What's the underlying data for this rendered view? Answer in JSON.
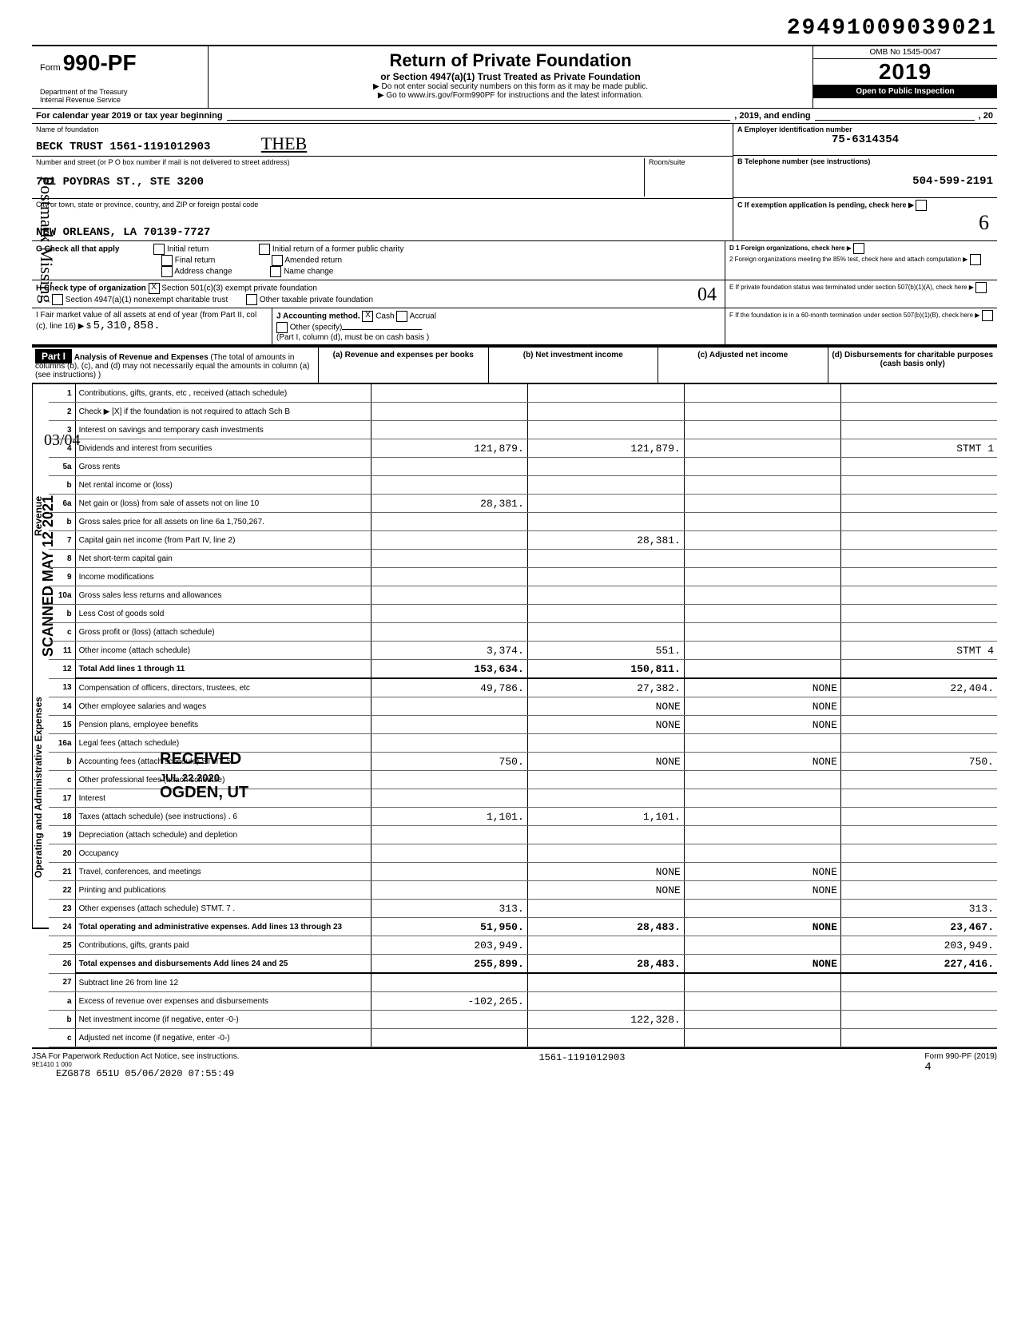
{
  "tracking_number": "29491009039021",
  "form": {
    "number": "990-PF",
    "title": "Return of Private Foundation",
    "subtitle": "or Section 4947(a)(1) Trust Treated as Private Foundation",
    "note1": "▶ Do not enter social security numbers on this form as it may be made public.",
    "note2": "▶ Go to www.irs.gov/Form990PF for instructions and the latest information.",
    "dept": "Department of the Treasury",
    "irs": "Internal Revenue Service",
    "omb": "OMB No 1545-0047",
    "year": "2019",
    "inspection": "Open to Public Inspection"
  },
  "cal_year": "For calendar year 2019 or tax year beginning",
  "cal_mid": ", 2019, and ending",
  "cal_end": ", 20",
  "foundation": {
    "name_label": "Name of foundation",
    "name": "BECK TRUST 1561-1191012903",
    "hand_note": "THEB",
    "street_label": "Number and street (or P O box number if mail is not delivered to street address)",
    "street": "701 POYDRAS ST., STE 3200",
    "room_label": "Room/suite",
    "city_label": "City or town, state or province, country, and ZIP or foreign postal code",
    "city": "NEW ORLEANS, LA 70139-7727"
  },
  "sideA": {
    "label": "A  Employer identification number",
    "value": "75-6314354"
  },
  "sideB": {
    "label": "B  Telephone number (see instructions)",
    "value": "504-599-2191"
  },
  "sideC": {
    "label": "C  If exemption application is pending, check here"
  },
  "sideD": {
    "d1": "D 1 Foreign organizations, check here",
    "d2": "2 Foreign organizations meeting the 85% test, check here and attach computation"
  },
  "sideE": {
    "label": "E  If private foundation status was terminated under section 507(b)(1)(A), check here"
  },
  "sideF": {
    "label": "F  If the foundation is in a 60-month termination under section 507(b)(1)(B), check here"
  },
  "sectionG": {
    "label": "G Check all that apply",
    "opts": [
      "Initial return",
      "Final return",
      "Address change",
      "Initial return of a former public charity",
      "Amended return",
      "Name change"
    ]
  },
  "sectionH": {
    "label": "H Check type of organization",
    "opt1": "Section 501(c)(3) exempt private foundation",
    "opt2": "Section 4947(a)(1) nonexempt charitable trust",
    "opt3": "Other taxable private foundation",
    "hand": "04"
  },
  "sectionI": {
    "label": "I  Fair market value of all assets at end of year (from Part II, col (c), line 16) ▶ $",
    "value": "5,310,858."
  },
  "sectionJ": {
    "label": "J Accounting method.",
    "cash": "Cash",
    "accrual": "Accrual",
    "other": "Other (specify)",
    "note": "(Part I, column (d), must be on cash basis )"
  },
  "part1": {
    "label": "Part I",
    "title": "Analysis of Revenue and Expenses",
    "note": "(The total of amounts in columns (b), (c), and (d) may not necessarily equal the amounts in column (a) (see instructions) )",
    "col_a": "(a) Revenue and expenses per books",
    "col_b": "(b) Net investment income",
    "col_c": "(c) Adjusted net income",
    "col_d": "(d) Disbursements for charitable purposes (cash basis only)"
  },
  "rows": [
    {
      "n": "1",
      "d": "Contributions, gifts, grants, etc , received (attach schedule)"
    },
    {
      "n": "2",
      "d": "Check ▶ [X] if the foundation is not required to attach Sch B"
    },
    {
      "n": "3",
      "d": "Interest on savings and temporary cash investments"
    },
    {
      "n": "4",
      "d": "Dividends and interest from securities",
      "a": "121,879.",
      "b": "121,879.",
      "e": "STMT 1"
    },
    {
      "n": "5a",
      "d": "Gross rents"
    },
    {
      "n": "b",
      "d": "Net rental income or (loss)"
    },
    {
      "n": "6a",
      "d": "Net gain or (loss) from sale of assets not on line 10",
      "a": "28,381."
    },
    {
      "n": "b",
      "d": "Gross sales price for all assets on line 6a    1,750,267."
    },
    {
      "n": "7",
      "d": "Capital gain net income (from Part IV, line 2)",
      "b": "28,381."
    },
    {
      "n": "8",
      "d": "Net short-term capital gain"
    },
    {
      "n": "9",
      "d": "Income modifications"
    },
    {
      "n": "10a",
      "d": "Gross sales less returns and allowances"
    },
    {
      "n": "b",
      "d": "Less Cost of goods sold"
    },
    {
      "n": "c",
      "d": "Gross profit or (loss) (attach schedule)"
    },
    {
      "n": "11",
      "d": "Other income (attach schedule)",
      "a": "3,374.",
      "b": "551.",
      "e": "STMT 4"
    },
    {
      "n": "12",
      "d": "Total Add lines 1 through 11",
      "a": "153,634.",
      "b": "150,811."
    },
    {
      "n": "13",
      "d": "Compensation of officers, directors, trustees, etc",
      "a": "49,786.",
      "b": "27,382.",
      "c": "NONE",
      "e": "22,404."
    },
    {
      "n": "14",
      "d": "Other employee salaries and wages",
      "b": "NONE",
      "c": "NONE"
    },
    {
      "n": "15",
      "d": "Pension plans, employee benefits",
      "b": "NONE",
      "c": "NONE"
    },
    {
      "n": "16a",
      "d": "Legal fees (attach schedule)"
    },
    {
      "n": "b",
      "d": "Accounting fees (attach schedule) STMT. 5 .",
      "a": "750.",
      "b": "NONE",
      "c": "NONE",
      "e": "750."
    },
    {
      "n": "c",
      "d": "Other professional fees (attach schedule)"
    },
    {
      "n": "17",
      "d": "Interest"
    },
    {
      "n": "18",
      "d": "Taxes (attach schedule) (see instructions) . 6",
      "a": "1,101.",
      "b": "1,101."
    },
    {
      "n": "19",
      "d": "Depreciation (attach schedule) and depletion"
    },
    {
      "n": "20",
      "d": "Occupancy"
    },
    {
      "n": "21",
      "d": "Travel, conferences, and meetings",
      "b": "NONE",
      "c": "NONE"
    },
    {
      "n": "22",
      "d": "Printing and publications",
      "b": "NONE",
      "c": "NONE"
    },
    {
      "n": "23",
      "d": "Other expenses (attach schedule) STMT. 7 .",
      "a": "313.",
      "e": "313."
    },
    {
      "n": "24",
      "d": "Total operating and administrative expenses. Add lines 13 through 23",
      "a": "51,950.",
      "b": "28,483.",
      "c": "NONE",
      "e": "23,467."
    },
    {
      "n": "25",
      "d": "Contributions, gifts, grants paid",
      "a": "203,949.",
      "e": "203,949."
    },
    {
      "n": "26",
      "d": "Total expenses and disbursements Add lines 24 and 25",
      "a": "255,899.",
      "b": "28,483.",
      "c": "NONE",
      "e": "227,416."
    },
    {
      "n": "27",
      "d": "Subtract line 26 from line 12"
    },
    {
      "n": "a",
      "d": "Excess of revenue over expenses and disbursements",
      "a": "-102,265."
    },
    {
      "n": "b",
      "d": "Net investment income (if negative, enter -0-)",
      "b": "122,328."
    },
    {
      "n": "c",
      "d": "Adjusted net income (if negative, enter -0-)"
    }
  ],
  "side_labels": {
    "revenue": "Revenue",
    "expenses": "Operating and Administrative Expenses"
  },
  "footer": {
    "jsa": "JSA For Paperwork Reduction Act Notice, see instructions.",
    "code": "9E1410 1 000",
    "stamp": "EZG878 651U 05/06/2020 07:55:49",
    "mid": "1561-1191012903",
    "page": "4",
    "form_ref": "Form 990-PF (2019)"
  },
  "margin": {
    "postmark": "Postmark Missing",
    "scanned": "SCANNED MAY 12 2021",
    "date": "03/04",
    "six": "6",
    "received": "RECEIVED",
    "recv_date": "JUL 22 2020",
    "ogden": "OGDEN, UT"
  }
}
